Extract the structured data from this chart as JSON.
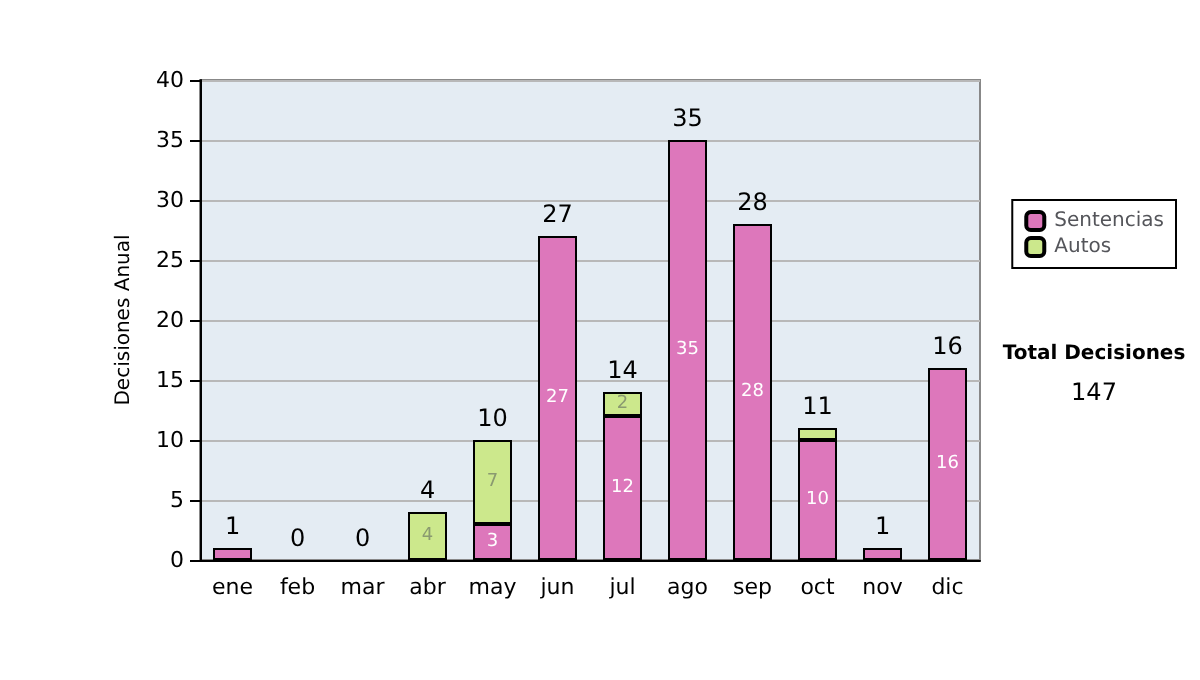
{
  "chart_data": {
    "type": "bar",
    "stacked": true,
    "ylabel": "Decisiones Anual",
    "categories": [
      "ene",
      "feb",
      "mar",
      "abr",
      "may",
      "jun",
      "jul",
      "ago",
      "sep",
      "oct",
      "nov",
      "dic"
    ],
    "series": [
      {
        "name": "Sentencias",
        "color": "#dd77bb",
        "values": [
          1,
          0,
          0,
          0,
          3,
          27,
          12,
          35,
          28,
          10,
          1,
          16
        ],
        "value_labels": [
          null,
          null,
          null,
          null,
          "3",
          "27",
          "12",
          "35",
          "28",
          "10",
          null,
          "16"
        ]
      },
      {
        "name": "Autos",
        "color": "#cce88c",
        "values": [
          0,
          0,
          0,
          4,
          7,
          0,
          2,
          0,
          0,
          1,
          0,
          0
        ],
        "value_labels": [
          null,
          null,
          null,
          "4",
          "7",
          null,
          "2",
          null,
          null,
          null,
          null,
          null
        ]
      }
    ],
    "totals": [
      "1",
      "0",
      "0",
      "4",
      "10",
      "27",
      "14",
      "35",
      "28",
      "11",
      "1",
      "16"
    ],
    "ylim": [
      0,
      40
    ],
    "yticks": [
      0,
      5,
      10,
      15,
      20,
      25,
      30,
      35,
      40
    ],
    "grid": "y",
    "legend": "right",
    "annotations": [
      "Total Decisiones",
      "147"
    ]
  }
}
